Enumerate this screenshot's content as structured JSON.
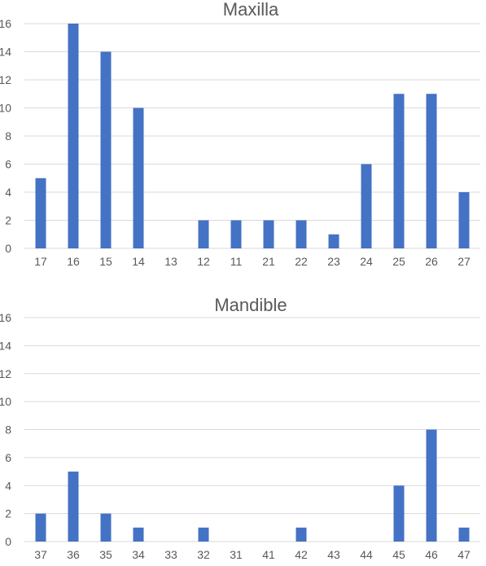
{
  "chart_data": [
    {
      "type": "bar",
      "title": "Maxilla",
      "xlabel": "",
      "ylabel": "",
      "categories": [
        "17",
        "16",
        "15",
        "14",
        "13",
        "12",
        "11",
        "21",
        "22",
        "23",
        "24",
        "25",
        "26",
        "27"
      ],
      "values": [
        5,
        16,
        14,
        10,
        0,
        2,
        2,
        2,
        2,
        1,
        6,
        11,
        11,
        4
      ],
      "ylim": [
        0,
        16
      ],
      "yticks": [
        "0",
        "2",
        "4",
        "6",
        "8",
        "10",
        "12",
        "14",
        "16"
      ],
      "grid": true,
      "legend": "none",
      "bar_color": "#4472c4"
    },
    {
      "type": "bar",
      "title": "Mandible",
      "xlabel": "",
      "ylabel": "",
      "categories": [
        "37",
        "36",
        "35",
        "34",
        "33",
        "32",
        "31",
        "41",
        "42",
        "43",
        "44",
        "45",
        "46",
        "47"
      ],
      "values": [
        2,
        5,
        2,
        1,
        0,
        1,
        0,
        0,
        1,
        0,
        0,
        4,
        8,
        1
      ],
      "ylim": [
        0,
        16
      ],
      "yticks": [
        "0",
        "2",
        "4",
        "6",
        "8",
        "10",
        "12",
        "14",
        "16"
      ],
      "grid": true,
      "legend": "none",
      "bar_color": "#4472c4"
    }
  ]
}
